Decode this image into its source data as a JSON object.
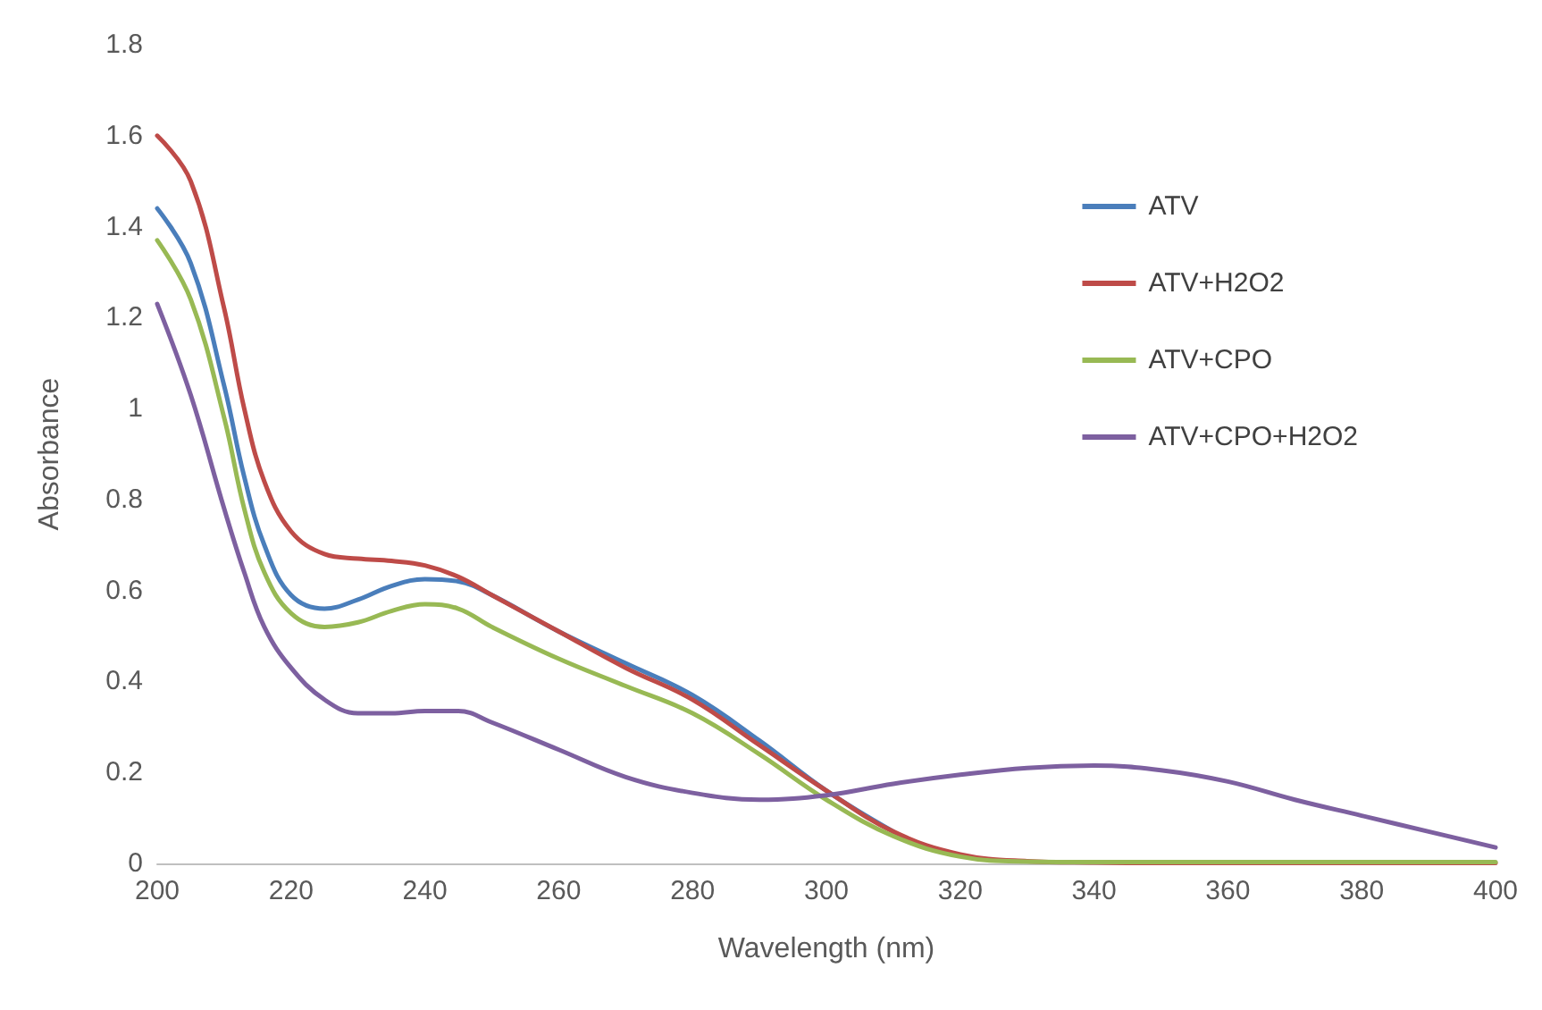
{
  "chart_data": {
    "type": "line",
    "xlabel": "Wavelength (nm)",
    "ylabel": "Absorbance",
    "xlim": [
      200,
      400
    ],
    "xticks": [
      200,
      220,
      240,
      260,
      280,
      300,
      320,
      340,
      360,
      380,
      400
    ],
    "ylim": [
      0,
      1.8
    ],
    "yticks": [
      0,
      0.2,
      0.4,
      0.6,
      0.8,
      1,
      1.2,
      1.4,
      1.6,
      1.8
    ],
    "grid": false,
    "legend": "top right",
    "marker": "none",
    "line_style": "solid",
    "x": [
      200,
      205,
      210,
      213,
      216,
      220,
      225,
      230,
      235,
      240,
      245,
      250,
      260,
      270,
      280,
      290,
      300,
      310,
      320,
      330,
      340,
      350,
      360,
      370,
      380,
      390,
      400
    ],
    "series": [
      {
        "name": "ATV",
        "color": "#4a7ebb",
        "values": [
          1.44,
          1.32,
          1.05,
          0.85,
          0.7,
          0.59,
          0.56,
          0.58,
          0.61,
          0.625,
          0.62,
          0.59,
          0.51,
          0.44,
          0.37,
          0.27,
          0.16,
          0.07,
          null,
          null,
          null,
          null,
          null,
          null,
          null,
          null,
          null
        ]
      },
      {
        "name": "ATV+H2O2",
        "color": "#be4b48",
        "values": [
          1.6,
          1.5,
          1.22,
          1.0,
          0.84,
          0.73,
          0.68,
          0.67,
          0.665,
          0.655,
          0.63,
          0.59,
          0.51,
          0.43,
          0.36,
          0.26,
          0.16,
          0.07,
          0.02,
          0.005,
          0.002,
          0.001,
          0.001,
          0.001,
          0.001,
          0.001,
          0.001
        ]
      },
      {
        "name": "ATV+CPO",
        "color": "#98b954",
        "values": [
          1.37,
          1.24,
          0.98,
          0.78,
          0.64,
          0.55,
          0.52,
          0.53,
          0.555,
          0.57,
          0.56,
          0.52,
          0.45,
          0.39,
          0.33,
          0.24,
          0.14,
          0.06,
          0.015,
          0.004,
          0.003,
          0.003,
          0.003,
          0.003,
          0.003,
          0.003,
          0.003
        ]
      },
      {
        "name": "ATV+CPO+H2O2",
        "color": "#7d60a0",
        "values": [
          1.23,
          1.03,
          0.78,
          0.64,
          0.52,
          0.43,
          0.36,
          0.33,
          0.33,
          0.335,
          0.335,
          0.31,
          0.25,
          0.19,
          0.155,
          0.14,
          0.15,
          0.175,
          0.195,
          0.21,
          0.215,
          0.205,
          0.18,
          0.14,
          0.105,
          0.07,
          0.035
        ]
      }
    ]
  }
}
